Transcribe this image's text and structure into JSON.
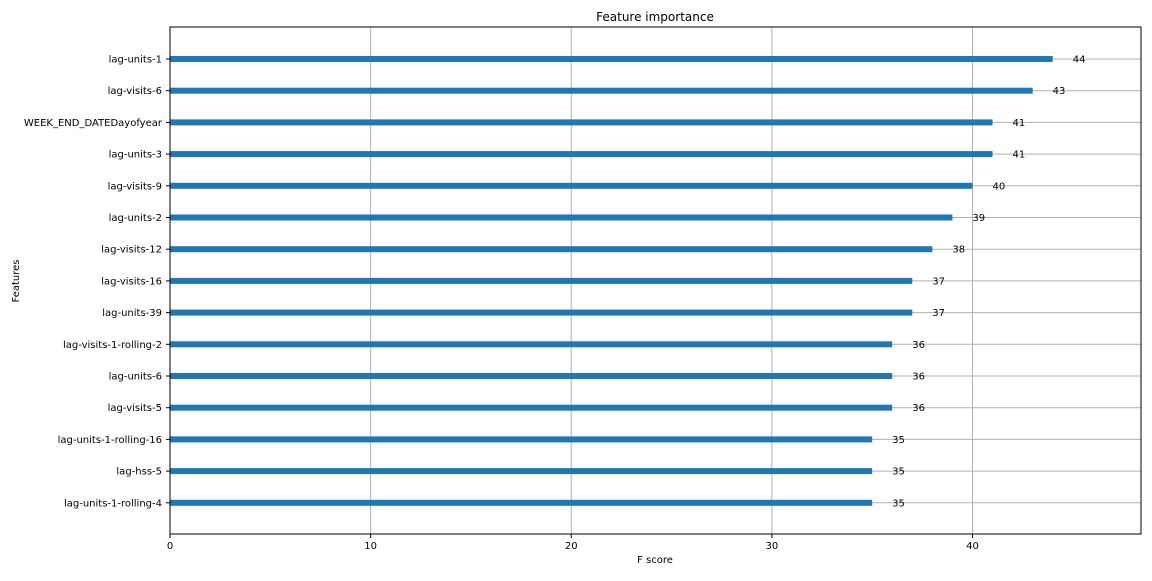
{
  "chart_data": {
    "type": "bar",
    "orientation": "horizontal",
    "title": "Feature importance",
    "xlabel": "F score",
    "ylabel": "Features",
    "xlim": [
      0,
      48.4
    ],
    "xticks": [
      0,
      10,
      20,
      30,
      40
    ],
    "grid": true,
    "bar_color": "#1f77b4",
    "categories": [
      "lag-units-1",
      "lag-visits-6",
      "WEEK_END_DATEDayofyear",
      "lag-units-3",
      "lag-visits-9",
      "lag-units-2",
      "lag-visits-12",
      "lag-visits-16",
      "lag-units-39",
      "lag-visits-1-rolling-2",
      "lag-units-6",
      "lag-visits-5",
      "lag-units-1-rolling-16",
      "lag-hss-5",
      "lag-units-1-rolling-4"
    ],
    "values": [
      44,
      43,
      41,
      41,
      40,
      39,
      38,
      37,
      37,
      36,
      36,
      36,
      35,
      35,
      35
    ]
  }
}
